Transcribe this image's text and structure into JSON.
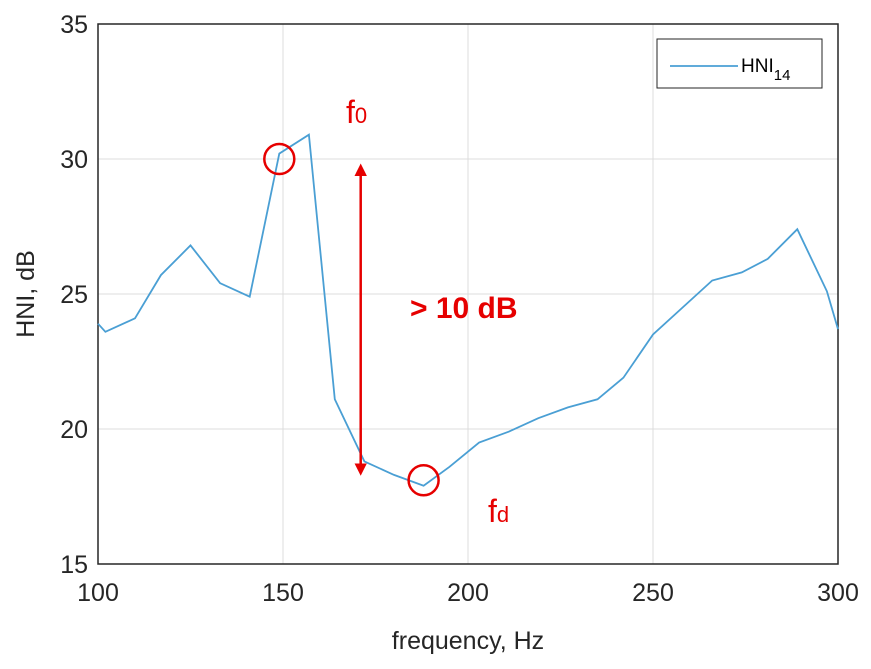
{
  "chart_data": {
    "type": "line",
    "xlabel": "frequency, Hz",
    "ylabel": "HNI, dB",
    "xlim": [
      100,
      300
    ],
    "ylim": [
      15,
      35
    ],
    "xticks": [
      "100",
      "150",
      "200",
      "250",
      "300"
    ],
    "yticks": [
      "15",
      "20",
      "25",
      "30",
      "35"
    ],
    "grid": true,
    "legend_position": "top-right",
    "series": [
      {
        "name": "HNI",
        "name_subscript": "14",
        "color": "#4a9fd4",
        "x": [
          100,
          102,
          110,
          117,
          125,
          133,
          141,
          149,
          157,
          164,
          172,
          180,
          188,
          195,
          203,
          211,
          219,
          227,
          235,
          242,
          250,
          258,
          266,
          274,
          281,
          289,
          297,
          300
        ],
        "y": [
          23.9,
          23.6,
          24.1,
          25.7,
          26.8,
          25.4,
          24.9,
          30.2,
          30.9,
          21.1,
          18.8,
          18.3,
          17.9,
          18.6,
          19.5,
          19.9,
          20.4,
          20.8,
          21.1,
          21.9,
          23.5,
          24.5,
          25.5,
          25.8,
          26.3,
          27.4,
          25.1,
          23.7
        ]
      }
    ],
    "annotations": {
      "f0_label": "f",
      "f0_sub": "0",
      "fd_label": "f",
      "fd_sub": "d",
      "diff_label": "> 10 dB",
      "f0_point": {
        "x": 149,
        "y": 30
      },
      "fd_point": {
        "x": 188,
        "y": 18.1
      },
      "arrow": {
        "x": 171,
        "y_top": 29.6,
        "y_bottom": 18.5
      },
      "color": "#e60000"
    }
  }
}
